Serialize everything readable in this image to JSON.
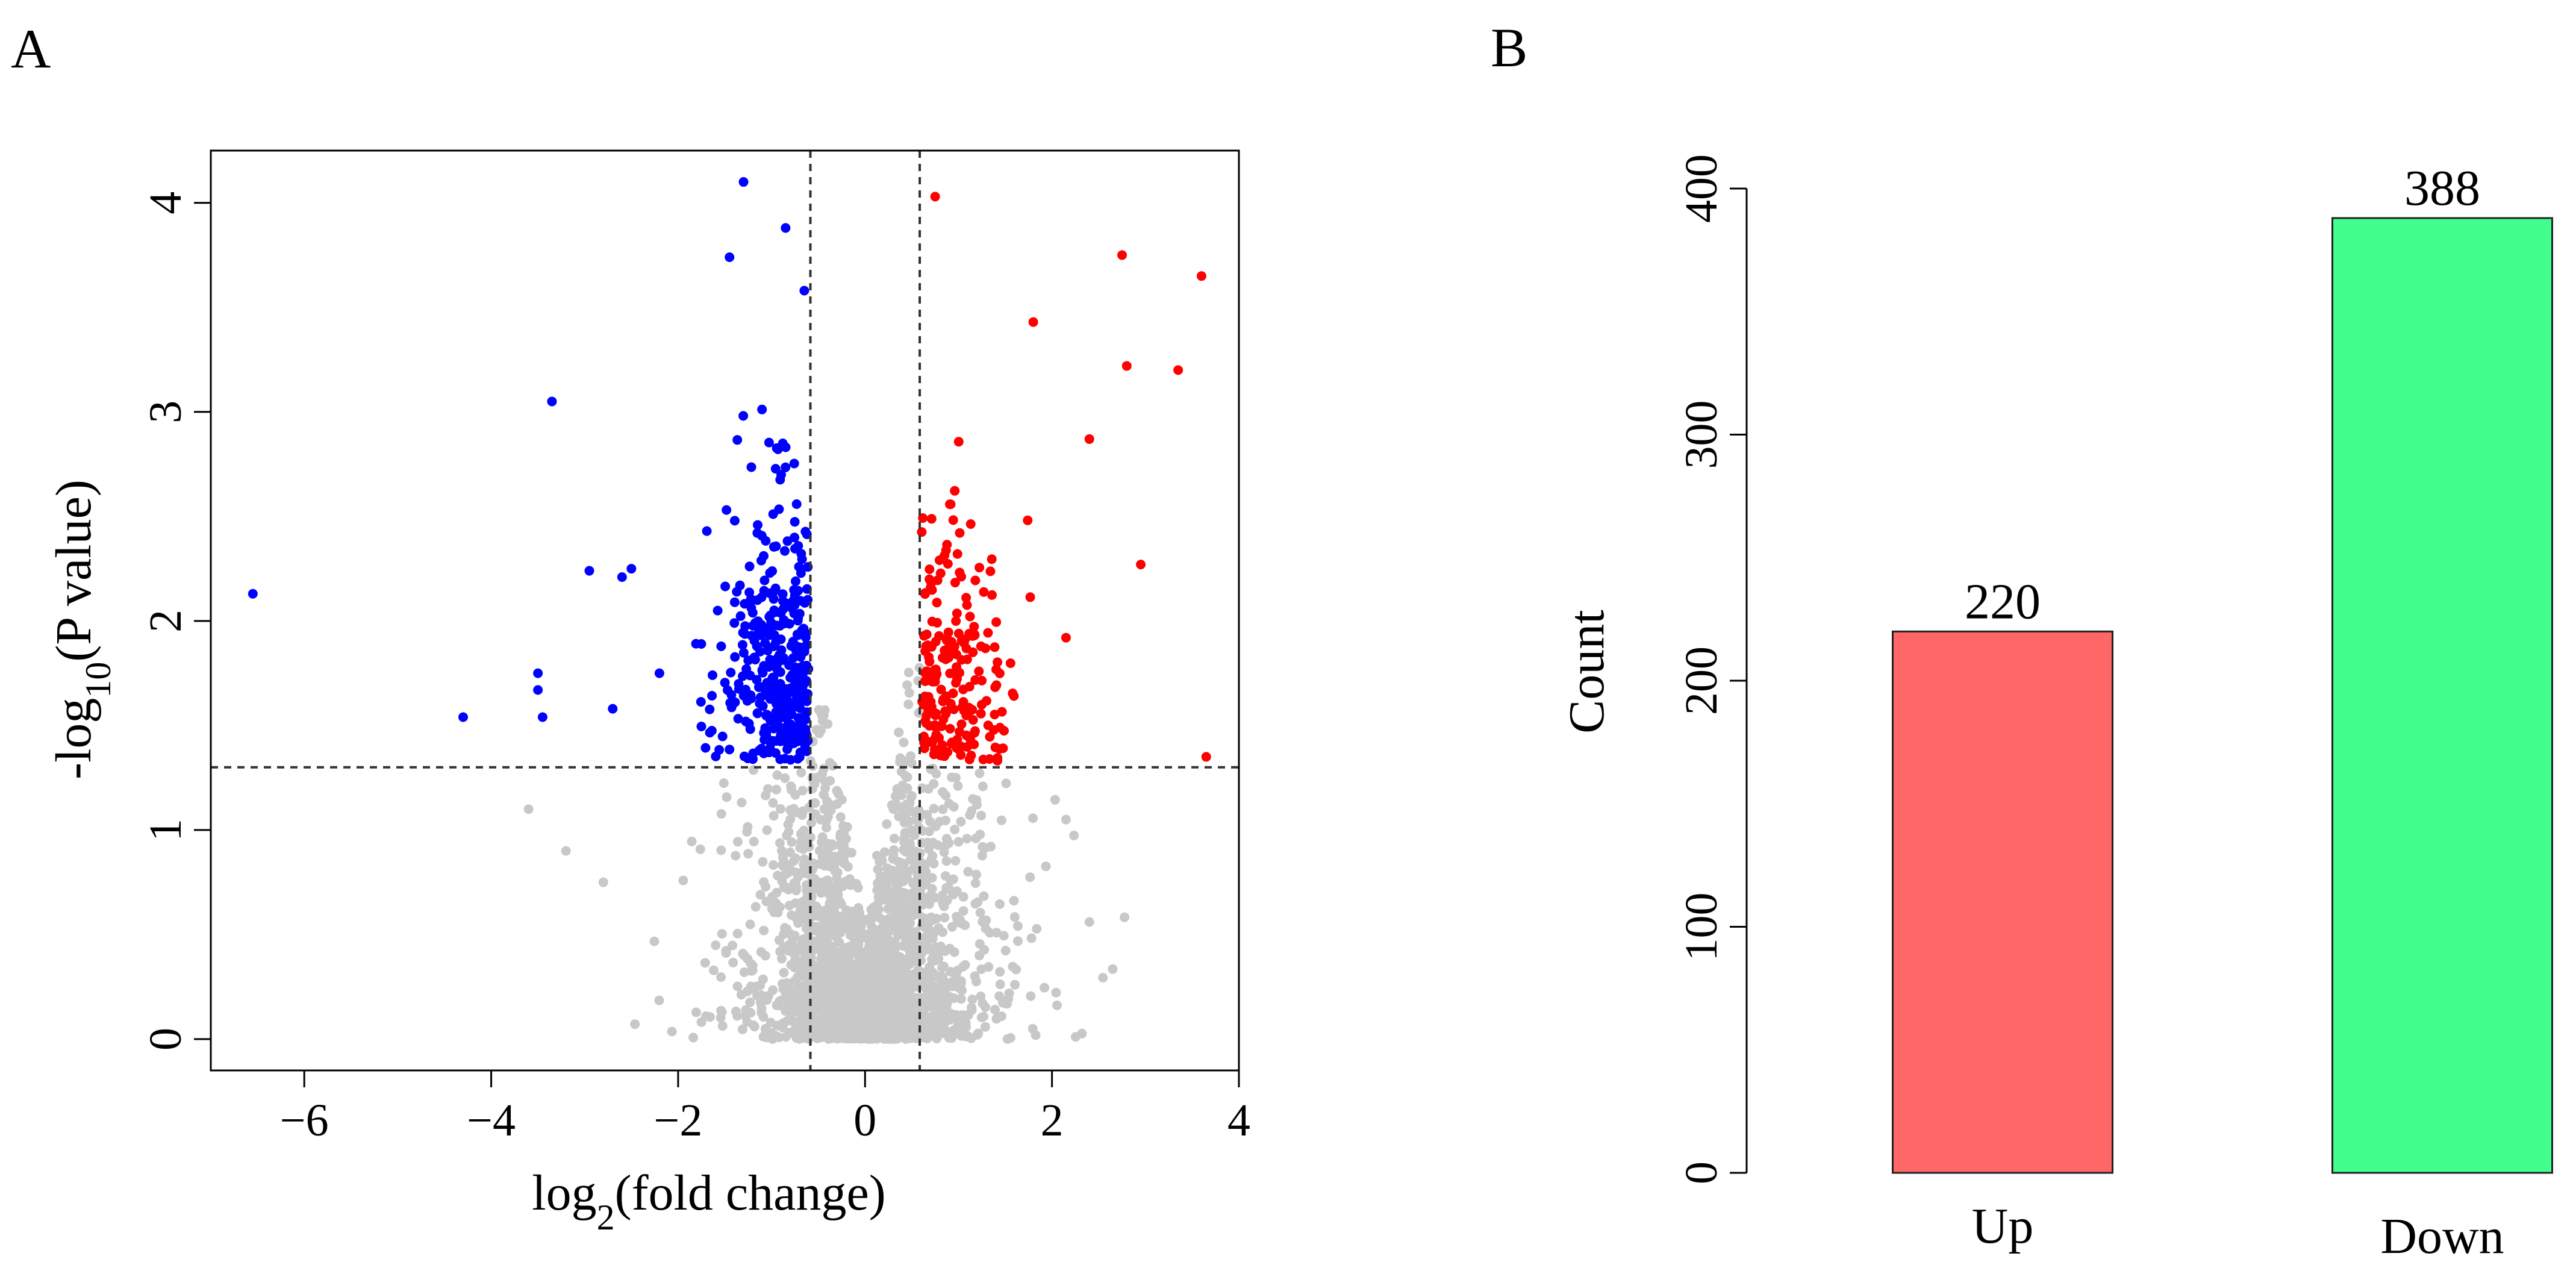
{
  "panels": {
    "a": "A",
    "b": "B"
  },
  "chart_data": [
    {
      "type": "scatter",
      "panel": "A",
      "title": "",
      "xlabel_prefix": "log",
      "xlabel_sub": "2",
      "xlabel_suffix": "(fold change)",
      "ylabel_prefix": "-log",
      "ylabel_sub": "10",
      "ylabel_suffix": "(P value)",
      "xlim": [
        -7,
        4
      ],
      "ylim": [
        -0.15,
        4.25
      ],
      "xticks": [
        -6,
        -4,
        -2,
        0,
        2,
        4
      ],
      "xtick_labels": [
        "−6",
        "−4",
        "−2",
        "0",
        "2",
        "4"
      ],
      "yticks": [
        0,
        1,
        2,
        3,
        4
      ],
      "ytick_labels": [
        "0",
        "1",
        "2",
        "3",
        "4"
      ],
      "thresholds": {
        "fold_change_log2": [
          -0.585,
          0.585
        ],
        "neg_log10_p": 1.3
      },
      "colors": {
        "up": "#ff0000",
        "down": "#0000ff",
        "ns": "#c8c8c8"
      },
      "highlight_points": {
        "down": [
          [
            -6.55,
            2.13
          ],
          [
            -4.3,
            1.54
          ],
          [
            -3.5,
            1.75
          ],
          [
            -3.5,
            1.67
          ],
          [
            -3.45,
            1.54
          ],
          [
            -3.35,
            3.05
          ],
          [
            -2.95,
            2.24
          ],
          [
            -2.6,
            2.21
          ],
          [
            -2.5,
            2.25
          ],
          [
            -2.7,
            1.58
          ],
          [
            -2.2,
            1.75
          ],
          [
            -1.3,
            4.1
          ],
          [
            -0.85,
            3.88
          ],
          [
            -1.45,
            3.74
          ],
          [
            -0.65,
            3.58
          ]
        ],
        "up": [
          [
            0.75,
            4.03
          ],
          [
            2.75,
            3.75
          ],
          [
            3.6,
            3.65
          ],
          [
            1.8,
            3.43
          ],
          [
            2.8,
            3.22
          ],
          [
            3.35,
            3.2
          ],
          [
            2.4,
            2.87
          ],
          [
            2.95,
            2.27
          ],
          [
            2.15,
            1.92
          ],
          [
            3.65,
            1.35
          ]
        ],
        "ns": [
          [
            2.4,
            0.56
          ],
          [
            -3.6,
            1.1
          ],
          [
            -3.2,
            0.9
          ],
          [
            2.15,
            1.05
          ],
          [
            -2.8,
            0.75
          ]
        ]
      },
      "generated_clouds": {
        "ns_count": 2400,
        "down_count": 373,
        "up_count": 210
      }
    },
    {
      "type": "bar",
      "panel": "B",
      "title": "",
      "ylabel": "Count",
      "xlabel": "",
      "categories": [
        "Up",
        "Down"
      ],
      "values": [
        220,
        388
      ],
      "value_labels": [
        "220",
        "388"
      ],
      "colors": [
        "#ff6666",
        "#40ff8c"
      ],
      "ylim": [
        0,
        400
      ],
      "yticks": [
        0,
        100,
        200,
        300,
        400
      ],
      "ytick_labels": [
        "0",
        "100",
        "200",
        "300",
        "400"
      ]
    }
  ]
}
